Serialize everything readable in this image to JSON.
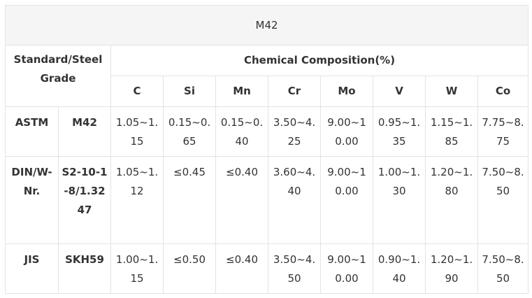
{
  "title": "M42",
  "header": {
    "standard_label": "Standard/Steel Grade",
    "composition_label": "Chemical Composition(%)",
    "elements": [
      "C",
      "Si",
      "Mn",
      "Cr",
      "Mo",
      "V",
      "W",
      "Co"
    ]
  },
  "rows": [
    {
      "standard": "ASTM",
      "grade": "M42",
      "values": [
        "1.05~1.15",
        "0.15~0.65",
        "0.15~0.40",
        "3.50~4.25",
        "9.00~10.00",
        "0.95~1.35",
        "1.15~1.85",
        "7.75~8.75"
      ]
    },
    {
      "standard": "DIN/W-Nr.",
      "grade": "S2-10-1-8/1.3247",
      "values": [
        "1.05~1.12",
        "≤0.45",
        "≤0.40",
        "3.60~4.40",
        "9.00~10.00",
        "1.00~1.30",
        "1.20~1.80",
        "7.50~8.50"
      ]
    },
    {
      "standard": "JIS",
      "grade": "SKH59",
      "values": [
        "1.00~1.15",
        "≤0.50",
        "≤0.40",
        "3.50~4.50",
        "9.00~10.00",
        "0.90~1.40",
        "1.20~1.90",
        "7.50~8.50"
      ]
    }
  ]
}
